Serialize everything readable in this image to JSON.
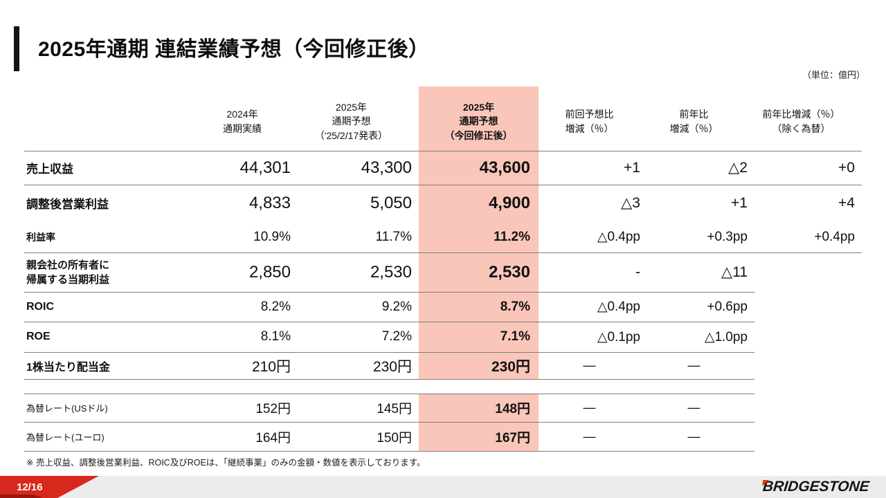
{
  "slide": {
    "title": "2025年通期 連結業績予想（今回修正後）",
    "unit_note": "（単位：億円）",
    "footnote": "※ 売上収益、調整後営業利益、ROIC及びROEは、「継続事業」のみの金額・数値を表示しております。",
    "page_number": "12/16",
    "brand": "BRIDGESTONE"
  },
  "table": {
    "headers": {
      "actual_2024": "2024年\n通期実績",
      "forecast_prev": "2025年\n通期予想\n（'25/2/17発表）",
      "forecast_revised": "2025年\n通期予想\n（今回修正後）",
      "vs_prev": "前回予想比\n増減（％）",
      "vs_yoy": "前年比\n増減（％）",
      "vs_yoy_exfx": "前年比増減（％）\n（除く為替）"
    },
    "rows": [
      {
        "label": "売上収益",
        "v2024": "44,301",
        "prev": "43,300",
        "revised": "43,600",
        "d_prev": "+1",
        "d_yoy": "△2",
        "d_exfx": "+0"
      },
      {
        "label": "調整後営業利益",
        "v2024": "4,833",
        "prev": "5,050",
        "revised": "4,900",
        "d_prev": "△3",
        "d_yoy": "+1",
        "d_exfx": "+4"
      },
      {
        "label": "利益率",
        "v2024": "10.9%",
        "prev": "11.7%",
        "revised": "11.2%",
        "d_prev": "△0.4pp",
        "d_yoy": "+0.3pp",
        "d_exfx": "+0.4pp"
      },
      {
        "label": "親会社の所有者に\n帰属する当期利益",
        "v2024": "2,850",
        "prev": "2,530",
        "revised": "2,530",
        "d_prev": "-",
        "d_yoy": "△11",
        "d_exfx": ""
      },
      {
        "label": "ROIC",
        "v2024": "8.2%",
        "prev": "9.2%",
        "revised": "8.7%",
        "d_prev": "△0.4pp",
        "d_yoy": "+0.6pp",
        "d_exfx": ""
      },
      {
        "label": "ROE",
        "v2024": "8.1%",
        "prev": "7.2%",
        "revised": "7.1%",
        "d_prev": "△0.1pp",
        "d_yoy": "△1.0pp",
        "d_exfx": ""
      },
      {
        "label": "1株当たり配当金",
        "v2024": "210円",
        "prev": "230円",
        "revised": "230円",
        "d_prev": "―",
        "d_yoy": "―",
        "d_exfx": ""
      },
      {
        "label": "為替レート(USドル)",
        "v2024": "152円",
        "prev": "145円",
        "revised": "148円",
        "d_prev": "―",
        "d_yoy": "―",
        "d_exfx": ""
      },
      {
        "label": "為替レート(ユーロ)",
        "v2024": "164円",
        "prev": "150円",
        "revised": "167円",
        "d_prev": "―",
        "d_yoy": "―",
        "d_exfx": ""
      }
    ]
  },
  "colors": {
    "highlight_pink": "#f9c6b9",
    "accent_red": "#d7281d",
    "logo_red": "#e8380d",
    "footer_gray": "#ececec",
    "line_gray": "#7d7d7d"
  }
}
